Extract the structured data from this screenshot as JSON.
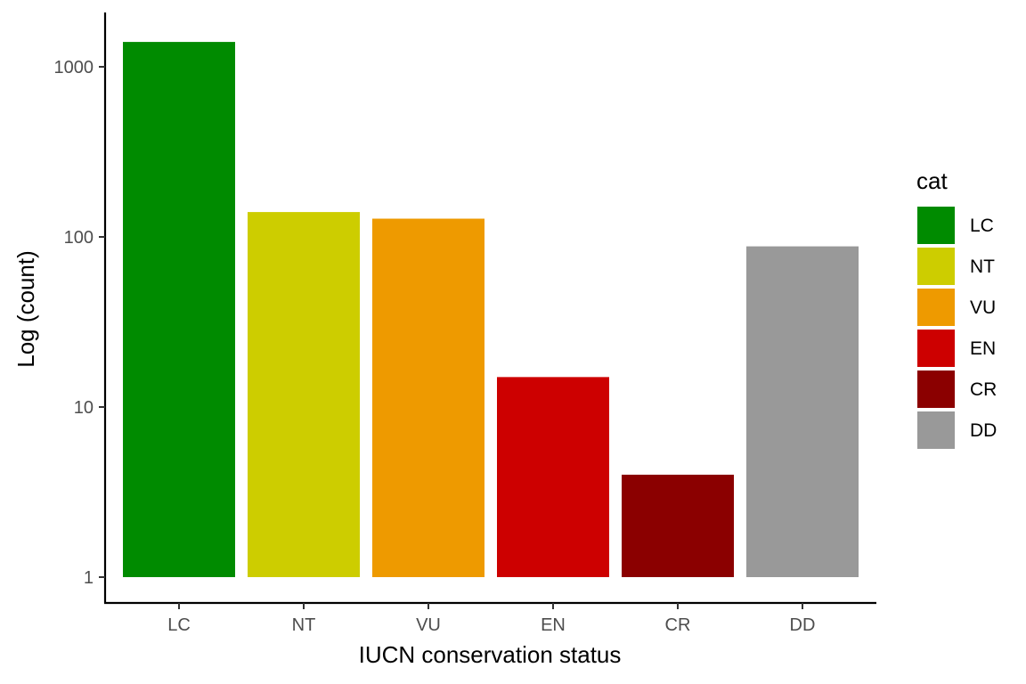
{
  "chart_data": {
    "type": "bar",
    "categories": [
      "LC",
      "NT",
      "VU",
      "EN",
      "CR",
      "DD"
    ],
    "values": [
      1400,
      140,
      128,
      15,
      4,
      88
    ],
    "colors": [
      "#008b00",
      "#cdcd00",
      "#ee9a00",
      "#cd0000",
      "#8b0000",
      "#999999"
    ],
    "xlabel": "IUCN conservation status",
    "ylabel": "Log (count)",
    "yscale": "log10",
    "ylim": [
      1,
      1700
    ],
    "yticks": [
      1,
      10,
      100,
      1000
    ],
    "ytick_labels": [
      "1",
      "10",
      "100",
      "1000"
    ],
    "grid": false,
    "legend": {
      "title": "cat",
      "position": "right",
      "entries": [
        "LC",
        "NT",
        "VU",
        "EN",
        "CR",
        "DD"
      ]
    }
  }
}
